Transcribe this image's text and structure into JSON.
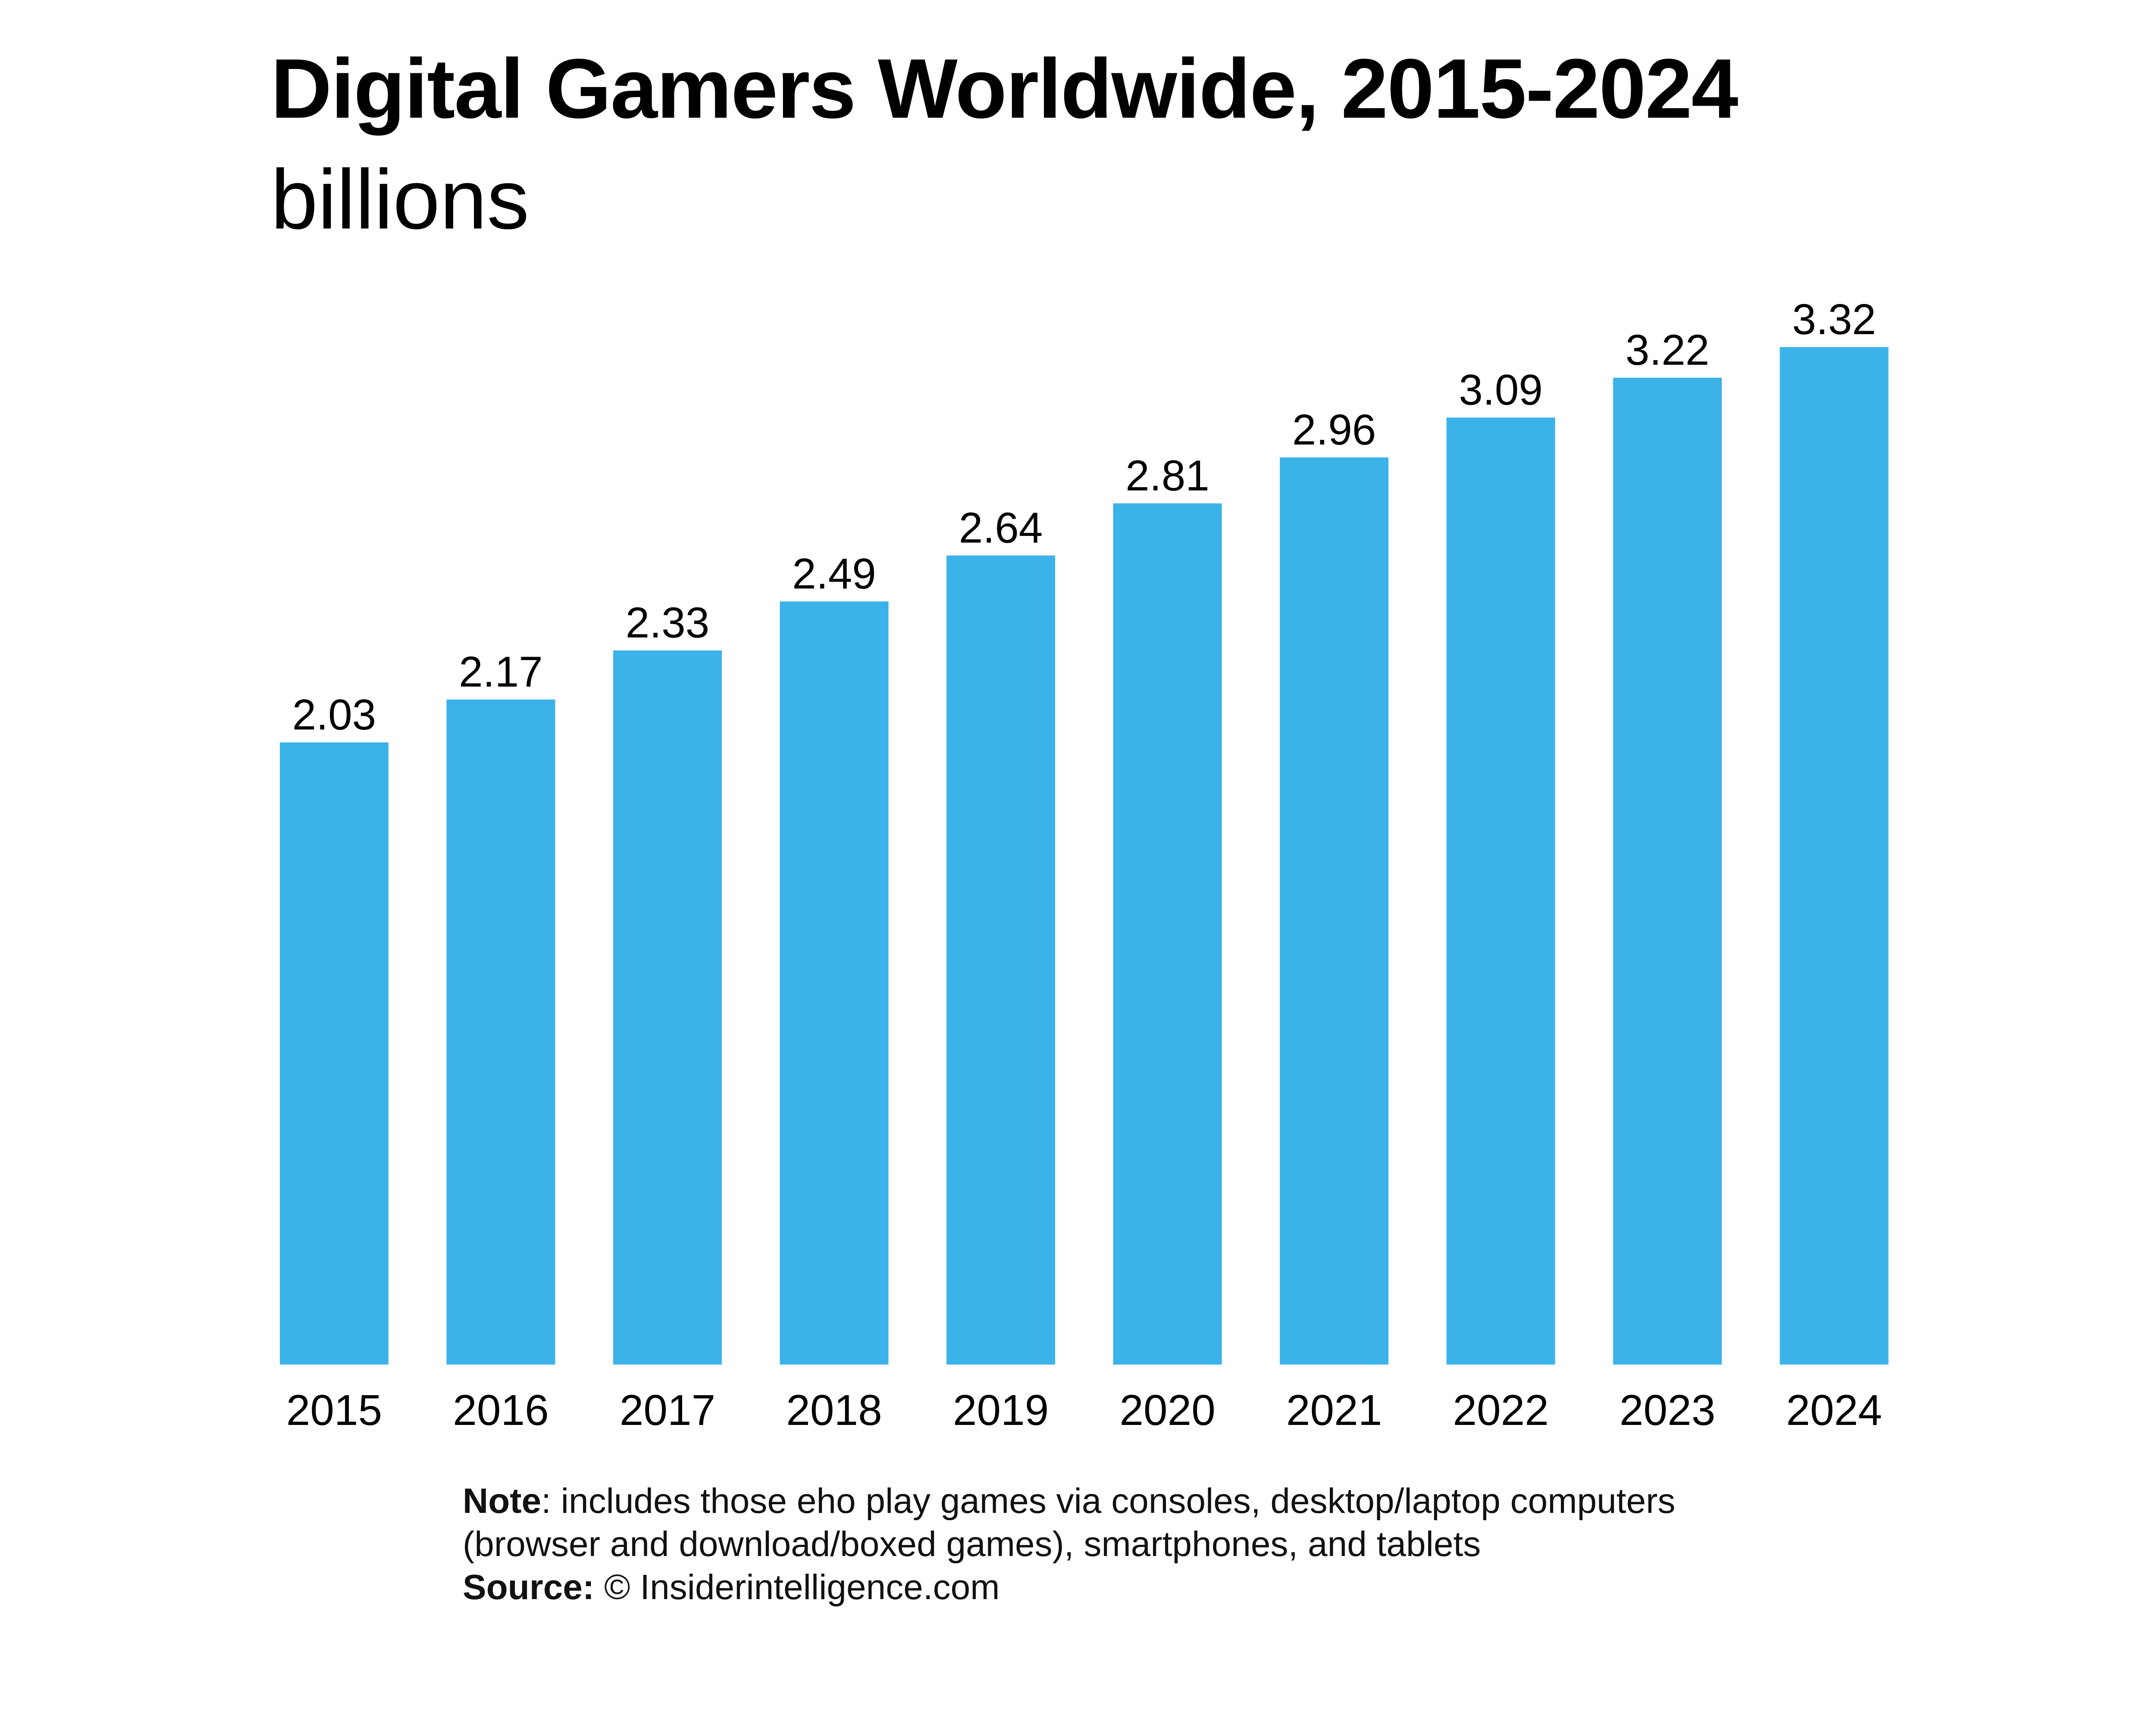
{
  "title": "Digital Gamers Worldwide, 2015-2024",
  "subtitle": "billions",
  "colors": {
    "bar": "#3BB3E8",
    "text": "#000000",
    "background": "#FFFFFF"
  },
  "note": {
    "label": "Note",
    "line1": ": includes those eho play games via consoles, desktop/laptop computers",
    "line2": "(browser and download/boxed games), smartphones, and tablets"
  },
  "source": {
    "label": "Source:",
    "text": "© Insiderintelligence.com"
  },
  "chart_data": {
    "type": "bar",
    "title": "Digital Gamers Worldwide, 2015-2024",
    "subtitle": "billions",
    "xlabel": "",
    "ylabel": "",
    "categories": [
      "2015",
      "2016",
      "2017",
      "2018",
      "2019",
      "2020",
      "2021",
      "2022",
      "2023",
      "2024"
    ],
    "values": [
      2.03,
      2.17,
      2.33,
      2.49,
      2.64,
      2.81,
      2.96,
      3.09,
      3.22,
      3.32
    ],
    "value_labels": [
      "2.03",
      "2.17",
      "2.33",
      "2.49",
      "2.64",
      "2.81",
      "2.96",
      "3.09",
      "3.22",
      "3.32"
    ],
    "ylim": [
      0,
      3.32
    ],
    "grid": false,
    "legend": "none"
  }
}
